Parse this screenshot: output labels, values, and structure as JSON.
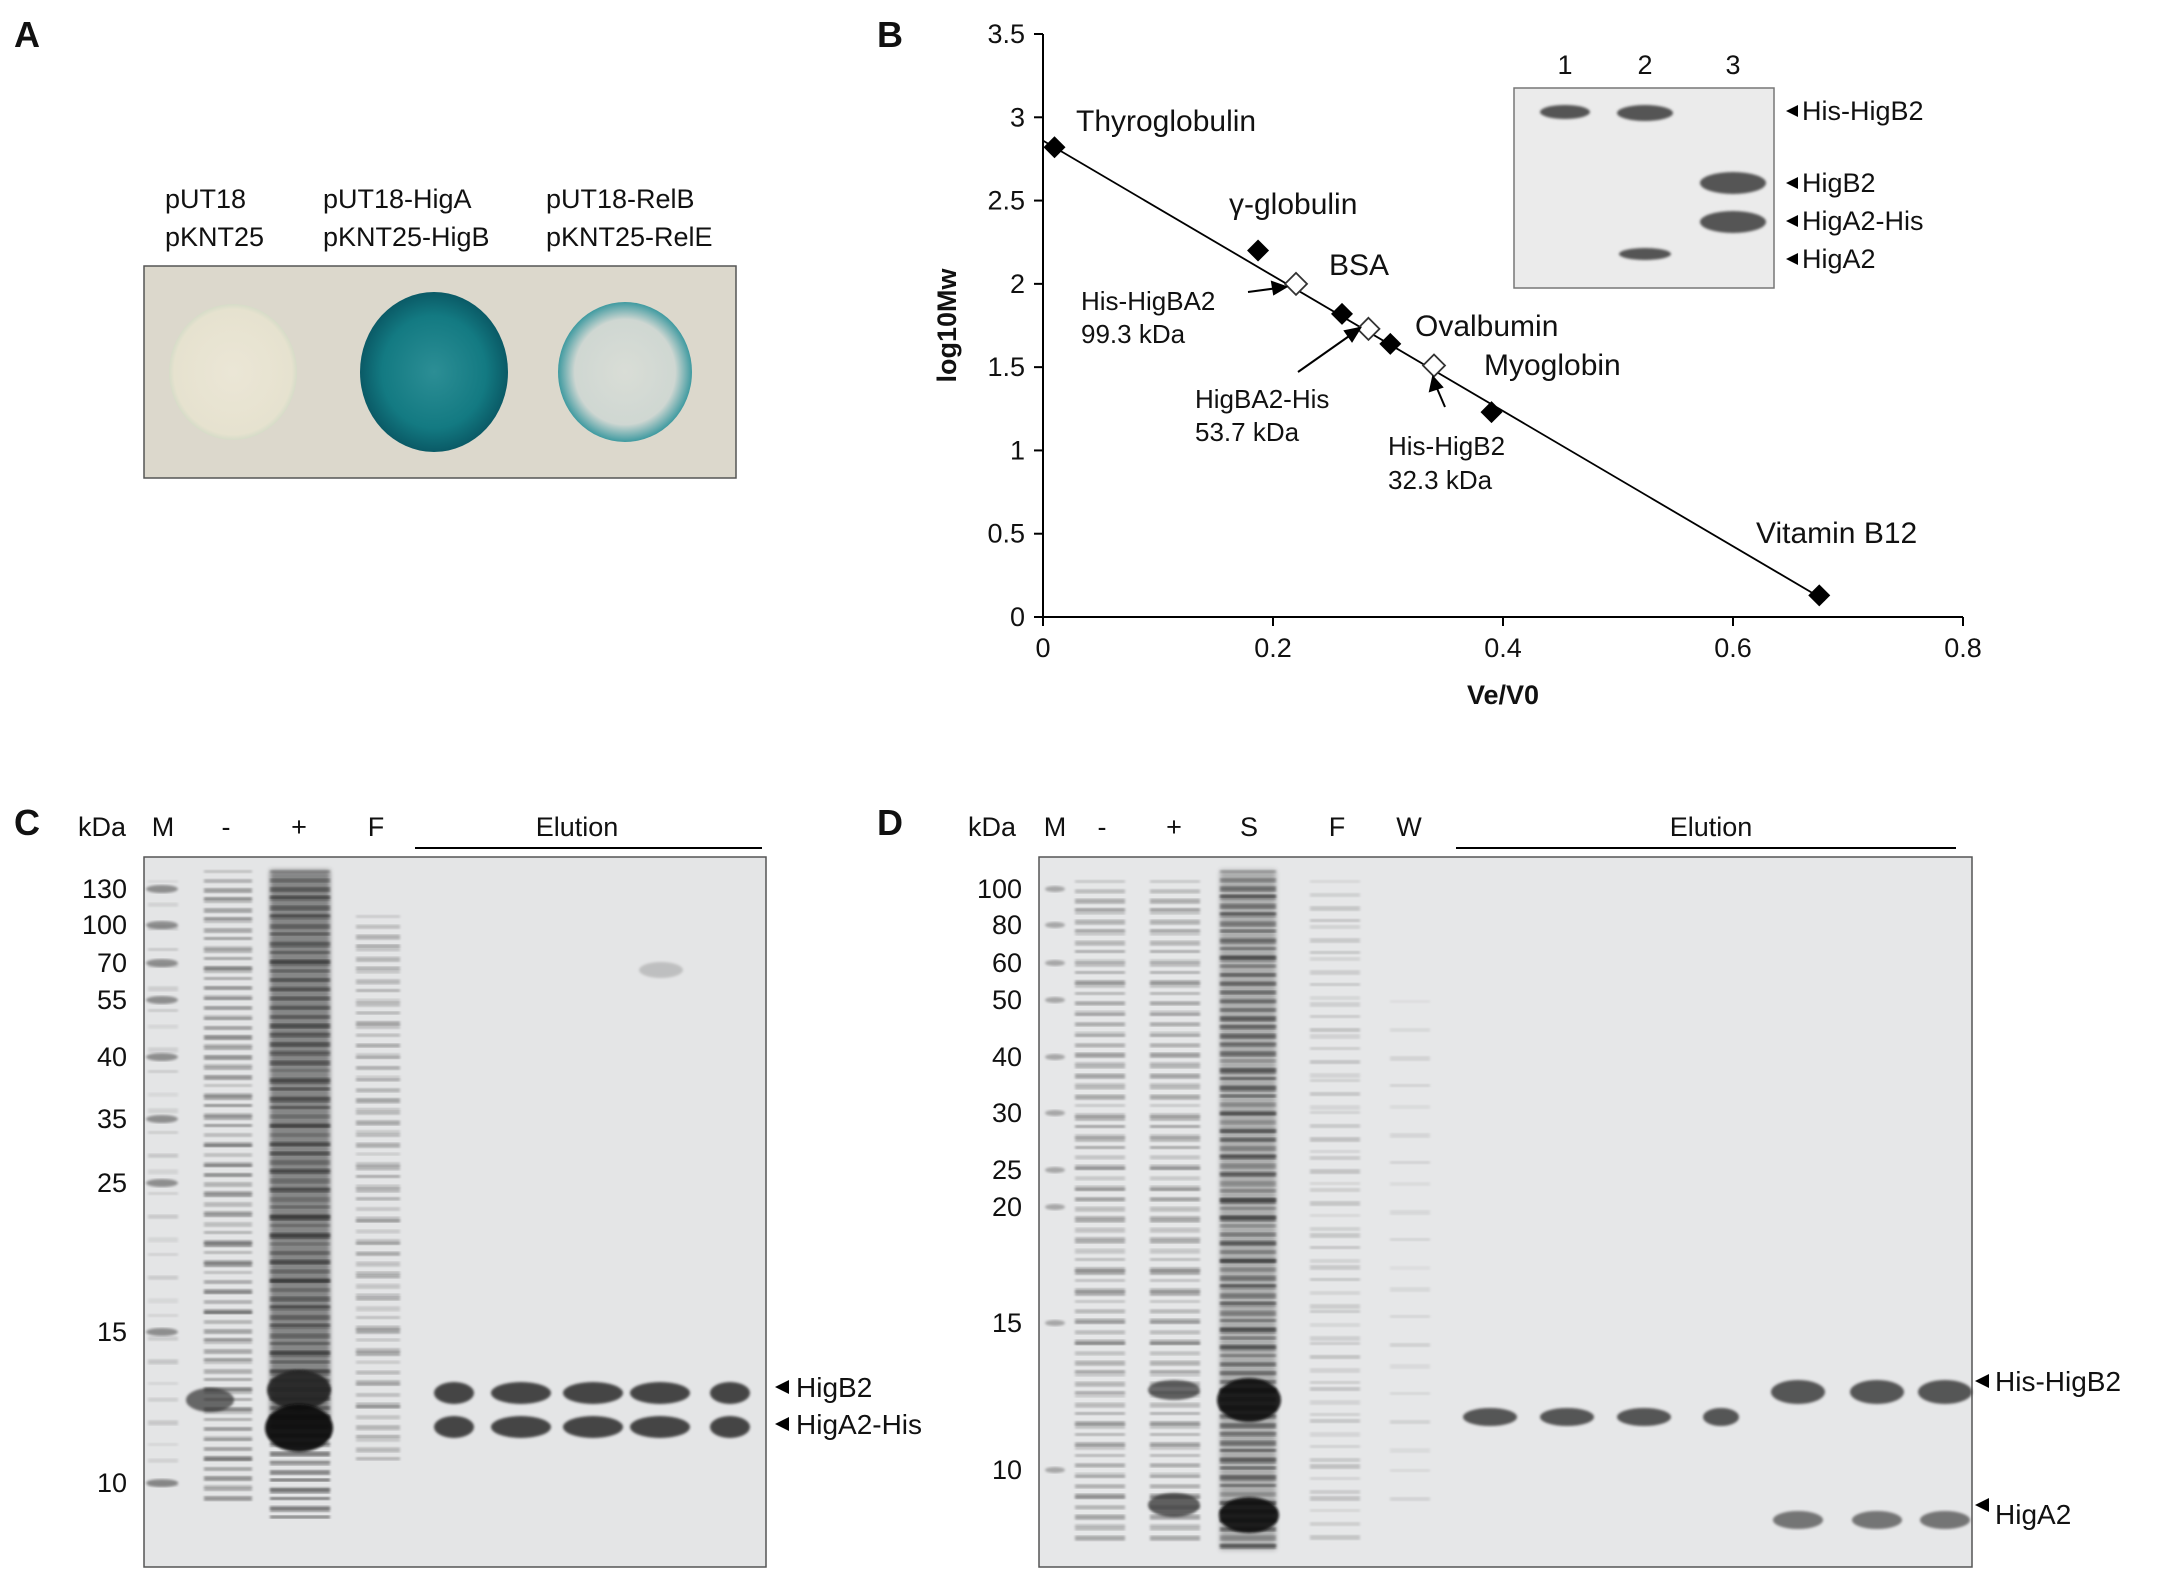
{
  "panels": {
    "A": {
      "label": "A",
      "columns": [
        {
          "line1": "pUT18",
          "line2": "pKNT25"
        },
        {
          "line1": "pUT18-HigA",
          "line2": "pKNT25-HigB"
        },
        {
          "line1": "pUT18-RelB",
          "line2": "pKNT25-RelE"
        }
      ]
    },
    "B": {
      "label": "B",
      "inset": {
        "lanes": [
          "1",
          "2",
          "3"
        ],
        "band_labels": [
          "His-HigB2",
          "HigB2",
          "HigA2-His",
          "HigA2"
        ]
      }
    },
    "C": {
      "label": "C",
      "kda_label": "kDa",
      "lanes": [
        "M",
        "-",
        "+",
        "F"
      ],
      "elution_label": "Elution",
      "markers": [
        "130",
        "100",
        "70",
        "55",
        "40",
        "35",
        "25",
        "15",
        "10"
      ],
      "band_labels": [
        "HigB2",
        "HigA2-His"
      ]
    },
    "D": {
      "label": "D",
      "kda_label": "kDa",
      "lanes": [
        "M",
        "-",
        "+",
        "S",
        "F",
        "W"
      ],
      "elution_label": "Elution",
      "markers": [
        "100",
        "80",
        "60",
        "50",
        "40",
        "30",
        "25",
        "20",
        "15",
        "10"
      ],
      "band_labels": [
        "His-HigB2",
        "HigA2"
      ]
    }
  },
  "chart_data": {
    "type": "scatter",
    "xlabel": "Ve/V0",
    "ylabel": "log10Mw",
    "xlim": [
      0,
      0.8
    ],
    "ylim": [
      0,
      3.5
    ],
    "xticks": [
      "0",
      "0.2",
      "0.4",
      "0.6",
      "0.8"
    ],
    "yticks": [
      "0",
      "0.5",
      "1",
      "1.5",
      "2",
      "2.5",
      "3",
      "3.5"
    ],
    "standards": [
      {
        "name": "Thyroglobulin",
        "x": 0.01,
        "y": 2.82
      },
      {
        "name": "γ-globulin",
        "x": 0.187,
        "y": 2.2
      },
      {
        "name": "BSA",
        "x": 0.26,
        "y": 1.82
      },
      {
        "name": "Ovalbumin",
        "x": 0.302,
        "y": 1.64
      },
      {
        "name": "Myoglobin",
        "x": 0.39,
        "y": 1.23
      },
      {
        "name": "Vitamin B12",
        "x": 0.675,
        "y": 0.13
      }
    ],
    "samples": [
      {
        "name": "His-HigBA2",
        "mw": "99.3 kDa",
        "x": 0.22,
        "y": 2.0
      },
      {
        "name": "HigBA2-His",
        "mw": "53.7 kDa",
        "x": 0.283,
        "y": 1.73
      },
      {
        "name": "His-HigB2",
        "mw": "32.3 kDa",
        "x": 0.34,
        "y": 1.51
      }
    ],
    "fit_line": {
      "x": [
        0.0,
        0.68
      ],
      "y": [
        2.86,
        0.1
      ]
    },
    "grid": false
  },
  "colors": {
    "standard": "#000000",
    "sample_fill": "#ffffff",
    "xgal_blue": "#0f7d85",
    "plate_bg": "#dcd8cc",
    "gel_bg": "#e4e5e6"
  }
}
